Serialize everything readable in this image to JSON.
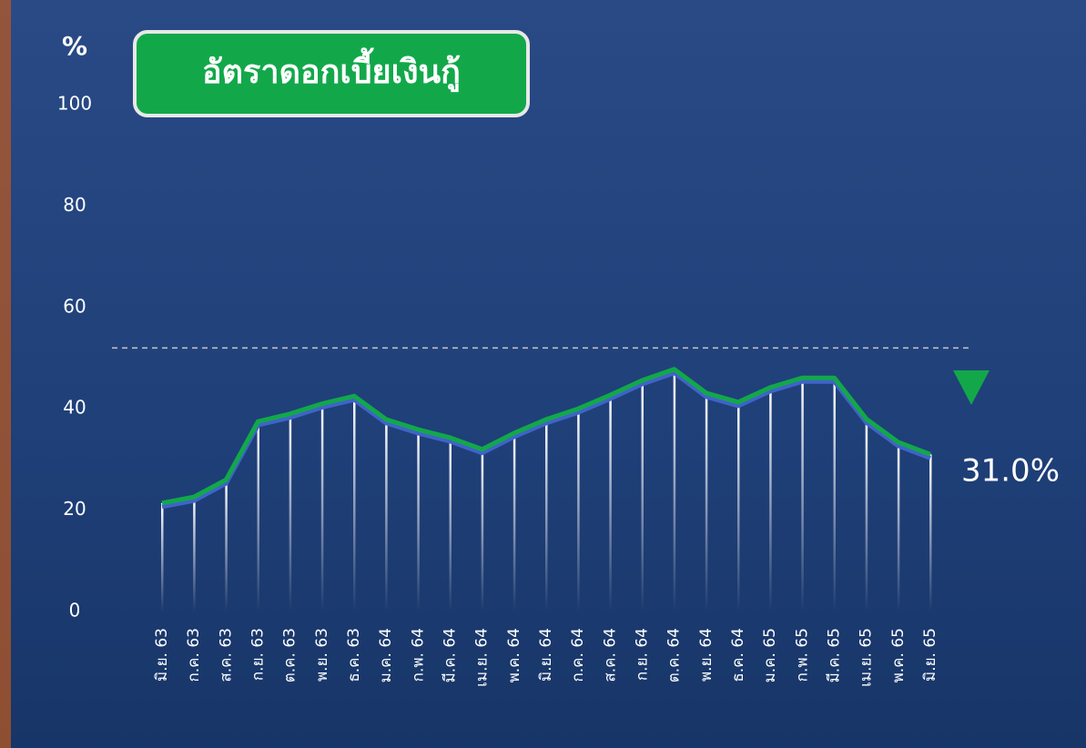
{
  "chart_data": {
    "type": "line",
    "title": "อัตราดอกเบี้ยเงินกู้",
    "y_label": "%",
    "categories": [
      "มิ.ย. 63",
      "ก.ค. 63",
      "ส.ค. 63",
      "ก.ย. 63",
      "ต.ค. 63",
      "พ.ย. 63",
      "ธ.ค. 63",
      "ม.ค. 64",
      "ก.พ. 64",
      "มี.ค. 64",
      "เม.ย. 64",
      "พ.ค. 64",
      "มิ.ย. 64",
      "ก.ค. 64",
      "ส.ค. 64",
      "ก.ย. 64",
      "ต.ค. 64",
      "พ.ย. 64",
      "ธ.ค. 64",
      "ม.ค. 65",
      "ก.พ. 65",
      "มี.ค. 65",
      "เม.ย. 65",
      "พ.ค. 65",
      "มิ.ย. 65"
    ],
    "series": [
      {
        "name": "อัตราดอกเบี้ยเงินกู้",
        "color": "#12a84a",
        "values": [
          21.4,
          22.6,
          26,
          37.5,
          39,
          41,
          42.5,
          37.9,
          35.9,
          34.3,
          32,
          35.2,
          37.9,
          40,
          42.7,
          45.6,
          47.8,
          43.1,
          41.3,
          44.2,
          46.1,
          46.1,
          38,
          33.4,
          31.0
        ]
      }
    ],
    "last_label": "31.0%",
    "reference_line": 52,
    "ylim": [
      0,
      100
    ],
    "yticks": [
      0,
      20,
      40,
      60,
      80,
      100
    ]
  }
}
